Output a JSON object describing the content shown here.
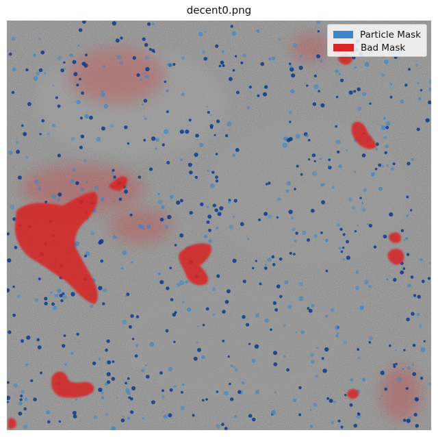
{
  "figure": {
    "title": "decent0.png"
  },
  "legend": {
    "items": [
      {
        "label": "Particle Mask",
        "color": "#3a86c8"
      },
      {
        "label": "Bad Mask",
        "color": "#d62728"
      }
    ]
  },
  "colors": {
    "background_gray": "#8a8a8a",
    "particle": "#3a86c8",
    "particle_dark": "#0a3a8c",
    "bad": "#d62728"
  }
}
